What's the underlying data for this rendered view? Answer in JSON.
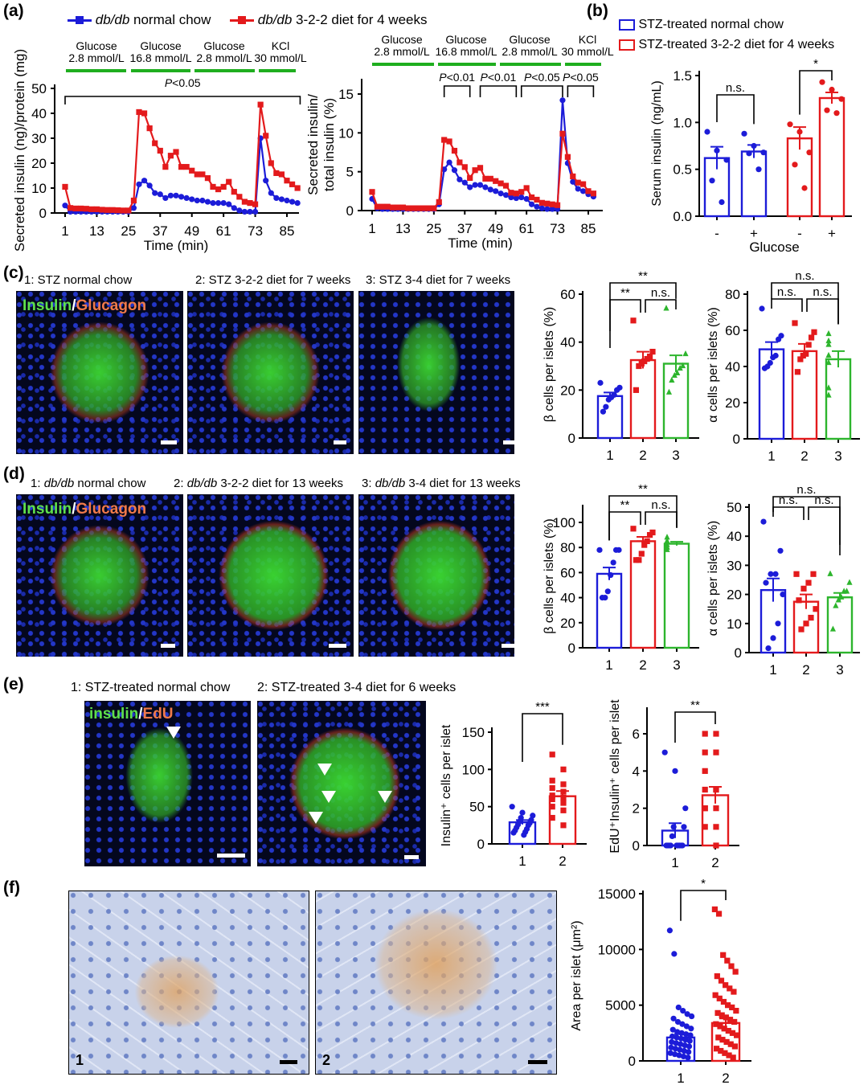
{
  "panel_labels": {
    "a": "(a)",
    "b": "(b)",
    "c": "(c)",
    "d": "(d)",
    "e": "(e)",
    "f": "(f)"
  },
  "legend_a": {
    "blue": {
      "italic": "db/db",
      "rest": " normal chow"
    },
    "red": {
      "italic": "db/db",
      "rest": " 3-2-2 diet for 4 weeks"
    }
  },
  "legend_b": {
    "blue": "STZ-treated normal chow",
    "red": "STZ-treated 3-2-2 diet for 4 weeks"
  },
  "panel_c": {
    "captions": [
      "1: STZ normal chow",
      "2: STZ 3-2-2 diet for 7 weeks",
      "3: STZ 3-4 diet for 7 weeks"
    ],
    "stain": {
      "a": "Insulin",
      "sep": "/",
      "b": "Glucagon"
    }
  },
  "panel_d": {
    "captions": [
      {
        "pre": "1: ",
        "italic": "db/db",
        "rest": " normal chow"
      },
      {
        "pre": "2: ",
        "italic": "db/db",
        "rest": " 3-2-2 diet for 13 weeks"
      },
      {
        "pre": "3: ",
        "italic": "db/db",
        "rest": " 3-4 diet for 13 weeks"
      }
    ],
    "stain": {
      "a": "Insulin",
      "sep": "/",
      "b": "Glucagon"
    }
  },
  "panel_e": {
    "captions": [
      "1: STZ-treated normal chow",
      "2: STZ-treated 3-4 diet for 6 weeks"
    ],
    "stain": {
      "a": "insulin",
      "sep": "/",
      "b": "EdU"
    }
  },
  "panel_f": {
    "image_labels": [
      "1",
      "2"
    ]
  },
  "colors": {
    "blue": "#1c1cd8",
    "red": "#e31a1c",
    "green": "#2db52d",
    "condition_bar": "#1fae1f"
  },
  "chart_data": [
    {
      "id": "a1",
      "type": "line",
      "ylabel": "Secreted insulin (ng)/protein (mg)",
      "xlabel": "Time (min)",
      "xticks": [
        1,
        13,
        25,
        37,
        49,
        61,
        73,
        85
      ],
      "yticks": [
        0,
        10,
        20,
        30,
        40,
        50
      ],
      "ylim": [
        0,
        50
      ],
      "conditions": [
        {
          "l1": "Glucose",
          "l2": "2.8 mmol/L"
        },
        {
          "l1": "Glucose",
          "l2": "16.8 mmol/L"
        },
        {
          "l1": "Glucose",
          "l2": "2.8 mmol/L"
        },
        {
          "l1": "KCl",
          "l2": "30 mmol/L"
        }
      ],
      "annotations": [
        {
          "text": "P<0.05",
          "from": 1,
          "to": 90
        }
      ],
      "x_start": 1,
      "x_step": 2,
      "series": [
        {
          "name": "db/db normal chow",
          "color": "#1c1cd8",
          "marker": "circle",
          "y": [
            3,
            0.5,
            0.5,
            0.5,
            0.5,
            0.5,
            0.5,
            0.5,
            0.5,
            0.5,
            0.5,
            0.5,
            0.5,
            2,
            11.5,
            13,
            11,
            8,
            7.5,
            6,
            7,
            7,
            6.5,
            6,
            5.5,
            5,
            5,
            4.5,
            4,
            4,
            4,
            3.5,
            2,
            1,
            0.5,
            0.5,
            0.5,
            30,
            13,
            8,
            6,
            5.5,
            5,
            4.5,
            4
          ]
        },
        {
          "name": "db/db 3-2-2 diet for 4 weeks",
          "color": "#e31a1c",
          "marker": "square",
          "y": [
            10.5,
            2,
            1.8,
            1.8,
            1.7,
            1.5,
            1.5,
            1.3,
            1.2,
            1.2,
            1.1,
            1,
            1,
            5,
            40.5,
            40,
            34,
            28,
            25,
            18.5,
            23,
            24.5,
            18.5,
            18.5,
            17,
            15.5,
            15.5,
            14,
            10.5,
            9.5,
            10.5,
            12.5,
            8.5,
            6.5,
            4.5,
            4,
            3.5,
            43.5,
            31,
            20,
            16,
            15.5,
            13,
            11.5,
            10
          ]
        }
      ]
    },
    {
      "id": "a2",
      "type": "line",
      "ylabel": "Secreted insulin/ total insulin (%)",
      "xlabel": "Time (min)",
      "xticks": [
        1,
        13,
        25,
        37,
        49,
        61,
        73,
        85
      ],
      "yticks": [
        0,
        5,
        10,
        15
      ],
      "ylim": [
        0,
        15
      ],
      "conditions": [
        {
          "l1": "Glucose",
          "l2": "2.8 mmol/L"
        },
        {
          "l1": "Glucose",
          "l2": "16.8 mmol/L"
        },
        {
          "l1": "Glucose",
          "l2": "2.8 mmol/L"
        },
        {
          "l1": "KCl",
          "l2": "30 mmol/L"
        }
      ],
      "annotations": [
        {
          "text": "P<0.01",
          "from": 29,
          "to": 39
        },
        {
          "text": "P<0.01",
          "from": 43,
          "to": 57
        },
        {
          "text": "P<0.05",
          "from": 59,
          "to": 75
        },
        {
          "text": "P<0.05",
          "from": 77,
          "to": 87
        }
      ],
      "x_start": 1,
      "x_step": 2,
      "series": [
        {
          "name": "db/db normal chow",
          "color": "#1c1cd8",
          "marker": "circle",
          "y": [
            1.5,
            0.3,
            0.2,
            0.2,
            0.2,
            0.2,
            0.2,
            0.2,
            0.2,
            0.2,
            0.2,
            0.2,
            0.2,
            0.8,
            5.3,
            6.2,
            5.2,
            4,
            3.6,
            3,
            3.3,
            3.3,
            3,
            2.7,
            2.5,
            2.2,
            2,
            1.7,
            1.6,
            1.7,
            1.5,
            0.8,
            0.5,
            0.3,
            0.2,
            0.2,
            0.2,
            14.2,
            6.1,
            3.7,
            2.8,
            2.5,
            2.1,
            1.8
          ]
        },
        {
          "name": "db/db 3-2-2 diet for 4 weeks",
          "color": "#e31a1c",
          "marker": "square",
          "y": [
            2.4,
            0.5,
            0.5,
            0.5,
            0.4,
            0.4,
            0.4,
            0.3,
            0.3,
            0.3,
            0.3,
            0.3,
            0.3,
            1.1,
            9.1,
            8.9,
            7.7,
            6.2,
            5.6,
            4.2,
            5.2,
            5.5,
            4.1,
            4.1,
            3.8,
            3.5,
            3.2,
            2.3,
            2.2,
            2.4,
            2.9,
            1.7,
            1.4,
            1,
            0.9,
            0.8,
            0.7,
            9.9,
            6.9,
            4.4,
            3.6,
            3.4,
            2.5,
            2.2
          ]
        }
      ]
    },
    {
      "id": "b",
      "type": "bar",
      "ylabel": "Serum insulin (ng/mL)",
      "xlabel": "Glucose",
      "categories": [
        "-",
        "+",
        "-",
        "+"
      ],
      "yticks": [
        0.0,
        0.5,
        1.0,
        1.5
      ],
      "ytick_labels": [
        "0.0",
        "0.5",
        "1.0",
        "1.5"
      ],
      "ylim": [
        0,
        1.5
      ],
      "colors": [
        "#1c1cd8",
        "#1c1cd8",
        "#e31a1c",
        "#e31a1c"
      ],
      "markers": [
        "circle",
        "circle",
        "circle",
        "circle"
      ],
      "means": [
        0.62,
        0.69,
        0.83,
        1.26
      ],
      "sem": [
        0.12,
        0.07,
        0.12,
        0.06
      ],
      "points": [
        [
          0.9,
          0.7,
          0.6,
          0.38,
          0.15
        ],
        [
          0.88,
          0.75,
          0.68,
          0.67,
          0.5
        ],
        [
          0.98,
          0.9,
          0.68,
          0.55,
          0.3
        ],
        [
          1.43,
          1.35,
          1.25,
          1.13,
          1.1
        ]
      ],
      "brackets": [
        {
          "a": 0,
          "b": 1,
          "text": "n.s."
        },
        {
          "a": 2,
          "b": 3,
          "text": "*"
        }
      ]
    },
    {
      "id": "c_beta",
      "type": "bar",
      "ylabel": "β cells per islets (%)",
      "xlabel": "",
      "categories": [
        "1",
        "2",
        "3"
      ],
      "yticks": [
        0,
        20,
        40,
        60
      ],
      "ylim": [
        0,
        60
      ],
      "colors": [
        "#1c1cd8",
        "#e31a1c",
        "#2db52d"
      ],
      "markers": [
        "circle",
        "square",
        "triangle"
      ],
      "means": [
        17.5,
        32.5,
        31
      ],
      "sem": [
        1.5,
        3.5,
        3.5
      ],
      "points": [
        [
          23,
          21,
          20,
          18,
          17,
          16,
          13,
          11
        ],
        [
          49,
          36,
          34,
          33,
          32,
          31,
          30,
          20
        ],
        [
          54,
          35,
          30,
          29,
          27,
          26,
          24,
          19
        ]
      ],
      "brackets": [
        {
          "a": 0,
          "b": 1,
          "text": "**"
        },
        {
          "a": 1,
          "b": 2,
          "text": "n.s."
        },
        {
          "a": 0,
          "b": 2,
          "text": "**"
        }
      ]
    },
    {
      "id": "c_alpha",
      "type": "bar",
      "ylabel": "α cells per islets (%)",
      "xlabel": "",
      "categories": [
        "1",
        "2",
        "3"
      ],
      "yticks": [
        0,
        20,
        40,
        60,
        80
      ],
      "ylim": [
        0,
        80
      ],
      "colors": [
        "#1c1cd8",
        "#e31a1c",
        "#2db52d"
      ],
      "markers": [
        "circle",
        "square",
        "triangle"
      ],
      "means": [
        49.5,
        48.5,
        44
      ],
      "sem": [
        4,
        4,
        4.5
      ],
      "points": [
        [
          72,
          57,
          55,
          46,
          45,
          42,
          40,
          39
        ],
        [
          64,
          59,
          56,
          52,
          47,
          46,
          44,
          37
        ],
        [
          58,
          54,
          52,
          46,
          42,
          28,
          24
        ]
      ],
      "brackets": [
        {
          "a": 0,
          "b": 1,
          "text": "n.s."
        },
        {
          "a": 1,
          "b": 2,
          "text": "n.s."
        },
        {
          "a": 0,
          "b": 2,
          "text": "n.s."
        }
      ]
    },
    {
      "id": "d_beta",
      "type": "bar",
      "ylabel": "β cells per islets (%)",
      "xlabel": "",
      "categories": [
        "1",
        "2",
        "3"
      ],
      "yticks": [
        0,
        20,
        40,
        60,
        80,
        100
      ],
      "ylim": [
        0,
        100
      ],
      "colors": [
        "#1c1cd8",
        "#e31a1c",
        "#2db52d"
      ],
      "markers": [
        "circle",
        "square",
        "triangle"
      ],
      "means": [
        59,
        85,
        83
      ],
      "sem": [
        5,
        3.5,
        1.5
      ],
      "points": [
        [
          78,
          78,
          78,
          68,
          58,
          45,
          40,
          40
        ],
        [
          95,
          92,
          90,
          85,
          82,
          75,
          70,
          70
        ],
        [
          88,
          85,
          84,
          82,
          80,
          80,
          78
        ]
      ],
      "brackets": [
        {
          "a": 0,
          "b": 1,
          "text": "**"
        },
        {
          "a": 1,
          "b": 2,
          "text": "n.s."
        },
        {
          "a": 0,
          "b": 2,
          "text": "**"
        }
      ]
    },
    {
      "id": "d_alpha",
      "type": "bar",
      "ylabel": "α cells per islets (%)",
      "xlabel": "",
      "categories": [
        "1",
        "2",
        "3"
      ],
      "yticks": [
        0,
        10,
        20,
        30,
        40,
        50
      ],
      "ylim": [
        0,
        50
      ],
      "colors": [
        "#1c1cd8",
        "#e31a1c",
        "#2db52d"
      ],
      "markers": [
        "circle",
        "square",
        "triangle"
      ],
      "means": [
        21.5,
        17.5,
        19
      ],
      "sem": [
        4,
        2.5,
        1.5
      ],
      "points": [
        [
          45,
          35,
          27,
          27,
          24,
          20,
          10,
          5,
          1.5
        ],
        [
          27,
          27,
          24,
          22,
          18,
          15,
          12,
          10,
          8
        ],
        [
          27,
          24,
          21,
          21,
          19,
          18,
          16,
          8
        ]
      ],
      "brackets": [
        {
          "a": 0,
          "b": 1,
          "text": "n.s."
        },
        {
          "a": 1,
          "b": 2,
          "text": "n.s."
        },
        {
          "a": 0,
          "b": 2,
          "text": "n.s."
        }
      ]
    },
    {
      "id": "e_ins",
      "type": "bar",
      "ylabel": "Insulin⁺ cells per islet",
      "xlabel": "",
      "categories": [
        "1",
        "2"
      ],
      "yticks": [
        0,
        50,
        100,
        150
      ],
      "ylim": [
        0,
        150
      ],
      "colors": [
        "#1c1cd8",
        "#e31a1c"
      ],
      "markers": [
        "circle",
        "square"
      ],
      "means": [
        29,
        64
      ],
      "sem": [
        3,
        7
      ],
      "points": [
        [
          50,
          42,
          38,
          35,
          32,
          30,
          28,
          26,
          25,
          22,
          20,
          18,
          16,
          15,
          12
        ],
        [
          120,
          100,
          85,
          80,
          75,
          70,
          65,
          62,
          60,
          55,
          50,
          45,
          35,
          25
        ]
      ],
      "brackets": [
        {
          "a": 0,
          "b": 1,
          "text": "***"
        }
      ]
    },
    {
      "id": "e_edu",
      "type": "bar",
      "ylabel": "EdU⁺Insulin⁺ cells per islet",
      "xlabel": "",
      "categories": [
        "1",
        "2"
      ],
      "yticks": [
        0,
        2,
        4,
        6
      ],
      "ylim": [
        0,
        6
      ],
      "colors": [
        "#1c1cd8",
        "#e31a1c"
      ],
      "markers": [
        "circle",
        "square"
      ],
      "means": [
        0.8,
        2.7
      ],
      "sem": [
        0.4,
        0.45
      ],
      "points": [
        [
          5,
          4,
          2,
          1,
          1,
          0.5,
          0,
          0,
          0,
          0,
          0,
          0,
          0,
          0,
          0
        ],
        [
          6,
          6,
          5,
          5,
          4,
          3,
          3,
          3,
          2,
          2,
          2,
          1,
          1,
          0
        ]
      ],
      "brackets": [
        {
          "a": 0,
          "b": 1,
          "text": "**"
        }
      ]
    },
    {
      "id": "f_area",
      "type": "bar",
      "ylabel": "Area per islet (μm²)",
      "xlabel": "",
      "categories": [
        "1",
        "2"
      ],
      "yticks": [
        0,
        5000,
        10000,
        15000
      ],
      "ylim": [
        0,
        15000
      ],
      "colors": [
        "#1c1cd8",
        "#e31a1c"
      ],
      "markers": [
        "circle",
        "square"
      ],
      "means": [
        2100,
        3400
      ],
      "sem": [
        300,
        400
      ],
      "points": [
        [
          11700,
          9600,
          4800,
          4500,
          4200,
          4000,
          3800,
          3500,
          3300,
          3100,
          2900,
          2800,
          2600,
          2500,
          2400,
          2300,
          2200,
          2100,
          2000,
          1900,
          1800,
          1700,
          1600,
          1500,
          1400,
          1300,
          1200,
          1100,
          1000,
          900,
          800,
          700,
          600,
          500,
          400,
          300
        ],
        [
          13600,
          13200,
          9500,
          9000,
          8500,
          8000,
          7600,
          7200,
          6800,
          6500,
          6200,
          5900,
          5600,
          5300,
          5000,
          4800,
          4500,
          4300,
          4100,
          3900,
          3700,
          3500,
          3300,
          3100,
          2900,
          2700,
          2500,
          2300,
          2100,
          1900,
          1700,
          1500,
          1300,
          1100,
          900,
          700,
          500,
          300
        ]
      ],
      "brackets": [
        {
          "a": 0,
          "b": 1,
          "text": "*"
        }
      ]
    }
  ]
}
